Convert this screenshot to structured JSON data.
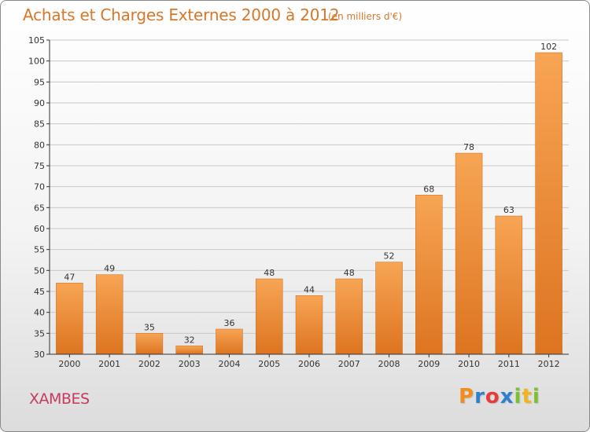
{
  "title": "Achats et Charges Externes 2000 à 2012",
  "subtitle": "(en milliers d'€)",
  "commune": "XAMBES",
  "logo": {
    "text": "Proxiti",
    "letters": [
      "P",
      "r",
      "o",
      "x",
      "i",
      "t",
      "i"
    ],
    "colors": [
      "#f28c1e",
      "#2e7fd0",
      "#e73b3b",
      "#2e7fd0",
      "#7cbf2f",
      "#f2b41e",
      "#7cbf2f"
    ]
  },
  "colors": {
    "bar_light": "#f7a554",
    "bar_dark": "#dd7420",
    "axis": "#333333",
    "grid": "#c8c8c8",
    "title": "#d6772a",
    "commune": "#c53b5f"
  },
  "chart_data": {
    "type": "bar",
    "categories": [
      "2000",
      "2001",
      "2002",
      "2003",
      "2004",
      "2005",
      "2006",
      "2007",
      "2008",
      "2009",
      "2010",
      "2011",
      "2012"
    ],
    "values": [
      47,
      49,
      35,
      32,
      36,
      48,
      44,
      48,
      52,
      68,
      78,
      63,
      102
    ],
    "ylim": [
      30,
      105
    ],
    "yticks": [
      30,
      35,
      40,
      45,
      50,
      55,
      60,
      65,
      70,
      75,
      80,
      85,
      90,
      95,
      100,
      105
    ],
    "grid": true,
    "legend": "none",
    "xlabel": "",
    "ylabel": ""
  }
}
